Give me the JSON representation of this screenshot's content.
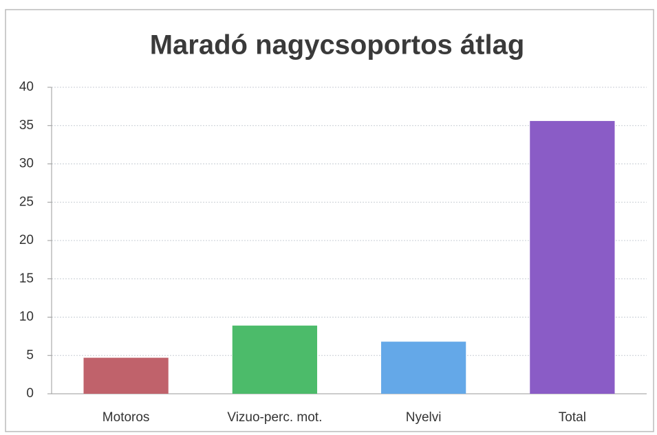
{
  "chart_data": {
    "type": "bar",
    "title": "Maradó nagycsoportos átlag",
    "categories": [
      "Motoros",
      "Vizuo-perc. mot.",
      "Nyelvi",
      "Total"
    ],
    "values": [
      4.7,
      8.9,
      6.8,
      35.6
    ],
    "colors": [
      "#c0626b",
      "#4cbb6a",
      "#64a8e8",
      "#8a5cc6"
    ],
    "ylim": [
      0,
      40
    ],
    "yticks": [
      0,
      5,
      10,
      15,
      20,
      25,
      30,
      35,
      40
    ],
    "grid": true
  }
}
